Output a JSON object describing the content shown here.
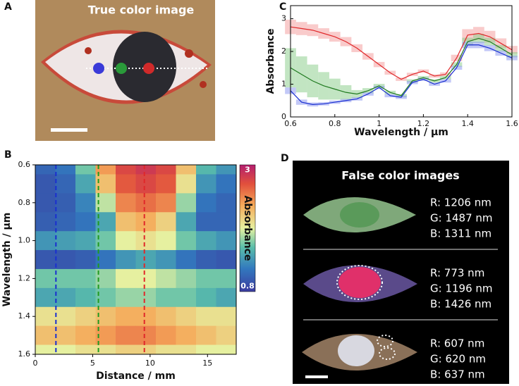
{
  "panel_a": {
    "label": "A",
    "title": "True color image"
  },
  "chart_data": [
    {
      "type": "line",
      "panel_label": "C",
      "x_label": "Wavelength / µm",
      "y_label": "Absorbance",
      "x": [
        0.6,
        0.65,
        0.7,
        0.75,
        0.8,
        0.85,
        0.9,
        0.95,
        1.0,
        1.05,
        1.1,
        1.15,
        1.2,
        1.25,
        1.3,
        1.35,
        1.4,
        1.45,
        1.5,
        1.55,
        1.6
      ],
      "xlim": [
        0.6,
        1.6
      ],
      "xticks": [
        0.6,
        0.8,
        1,
        1.2,
        1.4,
        1.6
      ],
      "ylim": [
        0,
        3.4
      ],
      "yticks": [
        0,
        1,
        2,
        3
      ],
      "series": [
        {
          "color": "#e0282a",
          "band_color": "#f4a0a0",
          "values": [
            2.75,
            2.7,
            2.65,
            2.55,
            2.45,
            2.3,
            2.1,
            1.85,
            1.6,
            1.35,
            1.15,
            1.3,
            1.4,
            1.25,
            1.3,
            1.8,
            2.5,
            2.55,
            2.45,
            2.25,
            2.05
          ],
          "errors": [
            0.22,
            0.2,
            0.18,
            0.16,
            0.15,
            0.14,
            0.12,
            0.1,
            0.08,
            0.06,
            0.05,
            0.05,
            0.05,
            0.05,
            0.06,
            0.1,
            0.18,
            0.2,
            0.18,
            0.15,
            0.12
          ]
        },
        {
          "color": "#1f7a1f",
          "band_color": "#8fd08f",
          "values": [
            1.5,
            1.3,
            1.1,
            0.95,
            0.85,
            0.75,
            0.7,
            0.8,
            0.95,
            0.75,
            0.65,
            1.1,
            1.2,
            1.1,
            1.2,
            1.6,
            2.3,
            2.4,
            2.3,
            2.1,
            1.9
          ],
          "errors": [
            0.6,
            0.55,
            0.5,
            0.42,
            0.32,
            0.22,
            0.12,
            0.08,
            0.06,
            0.05,
            0.05,
            0.05,
            0.05,
            0.05,
            0.05,
            0.07,
            0.12,
            0.14,
            0.12,
            0.1,
            0.08
          ]
        },
        {
          "color": "#1a2fd0",
          "band_color": "#8f9af0",
          "values": [
            0.8,
            0.45,
            0.38,
            0.4,
            0.45,
            0.5,
            0.55,
            0.7,
            0.9,
            0.65,
            0.6,
            1.05,
            1.15,
            1.0,
            1.1,
            1.5,
            2.2,
            2.2,
            2.1,
            1.95,
            1.8
          ],
          "errors": [
            0.1,
            0.08,
            0.06,
            0.05,
            0.05,
            0.05,
            0.05,
            0.05,
            0.05,
            0.05,
            0.05,
            0.05,
            0.05,
            0.05,
            0.05,
            0.06,
            0.1,
            0.1,
            0.09,
            0.08,
            0.07
          ]
        }
      ]
    },
    {
      "type": "heatmap",
      "panel_label": "B",
      "x_label": "Distance / mm",
      "y_label": "Wavelength / µm",
      "colorbar_label": "Absorbance",
      "x": [
        0.875,
        2.625,
        4.375,
        6.125,
        7.875,
        9.625,
        11.375,
        13.125,
        14.875,
        16.625
      ],
      "y": [
        0.6,
        0.7,
        0.8,
        0.9,
        1.0,
        1.1,
        1.2,
        1.3,
        1.4,
        1.5,
        1.6
      ],
      "xlim": [
        0,
        17.5
      ],
      "xticks": [
        0,
        5,
        10,
        15
      ],
      "ylim": [
        0.6,
        1.6
      ],
      "y_inverted": true,
      "yticks": [
        0.6,
        0.8,
        {
          "value": 1,
          "label": "1.0"
        },
        1.2,
        1.4,
        1.6
      ],
      "clim": [
        0.7,
        3.1
      ],
      "cticks": [
        0.8,
        3
      ],
      "values": [
        [
          1.0,
          1.1,
          1.6,
          2.4,
          2.8,
          2.9,
          2.8,
          2.2,
          1.5,
          1.3
        ],
        [
          0.9,
          1.0,
          1.4,
          2.2,
          2.7,
          2.8,
          2.7,
          2.0,
          1.3,
          1.1
        ],
        [
          0.9,
          0.95,
          1.2,
          1.8,
          2.5,
          2.6,
          2.5,
          1.7,
          1.1,
          1.0
        ],
        [
          0.95,
          1.0,
          1.1,
          1.4,
          2.2,
          2.3,
          2.1,
          1.4,
          1.0,
          1.0
        ],
        [
          1.3,
          1.35,
          1.4,
          1.6,
          1.9,
          2.0,
          1.9,
          1.6,
          1.4,
          1.3
        ],
        [
          0.9,
          0.9,
          0.95,
          1.1,
          1.3,
          1.4,
          1.3,
          1.1,
          0.95,
          0.9
        ],
        [
          1.6,
          1.6,
          1.6,
          1.7,
          1.9,
          1.9,
          1.8,
          1.7,
          1.6,
          1.6
        ],
        [
          1.4,
          1.4,
          1.5,
          1.6,
          1.7,
          1.7,
          1.6,
          1.6,
          1.5,
          1.4
        ],
        [
          2.0,
          2.0,
          2.1,
          2.2,
          2.3,
          2.3,
          2.2,
          2.1,
          2.0,
          2.0
        ],
        [
          2.2,
          2.2,
          2.3,
          2.4,
          2.5,
          2.5,
          2.4,
          2.3,
          2.2,
          2.1
        ],
        [
          1.9,
          1.9,
          2.0,
          2.0,
          2.1,
          2.1,
          2.0,
          2.0,
          1.9,
          1.9
        ]
      ],
      "markers": [
        {
          "x": 1.8,
          "color": "#1a2fd0"
        },
        {
          "x": 5.5,
          "color": "#1f9a1f"
        },
        {
          "x": 9.5,
          "color": "#e0282a"
        }
      ]
    }
  ],
  "panel_d": {
    "label": "D",
    "title": "False color images",
    "images": [
      [
        "R: 1206 nm",
        "G: 1487 nm",
        "B: 1311 nm"
      ],
      [
        "R: 773 nm",
        "G: 1196 nm",
        "B: 1426 nm"
      ],
      [
        "R: 607 nm",
        "G: 620 nm",
        "B: 637 nm"
      ]
    ]
  }
}
